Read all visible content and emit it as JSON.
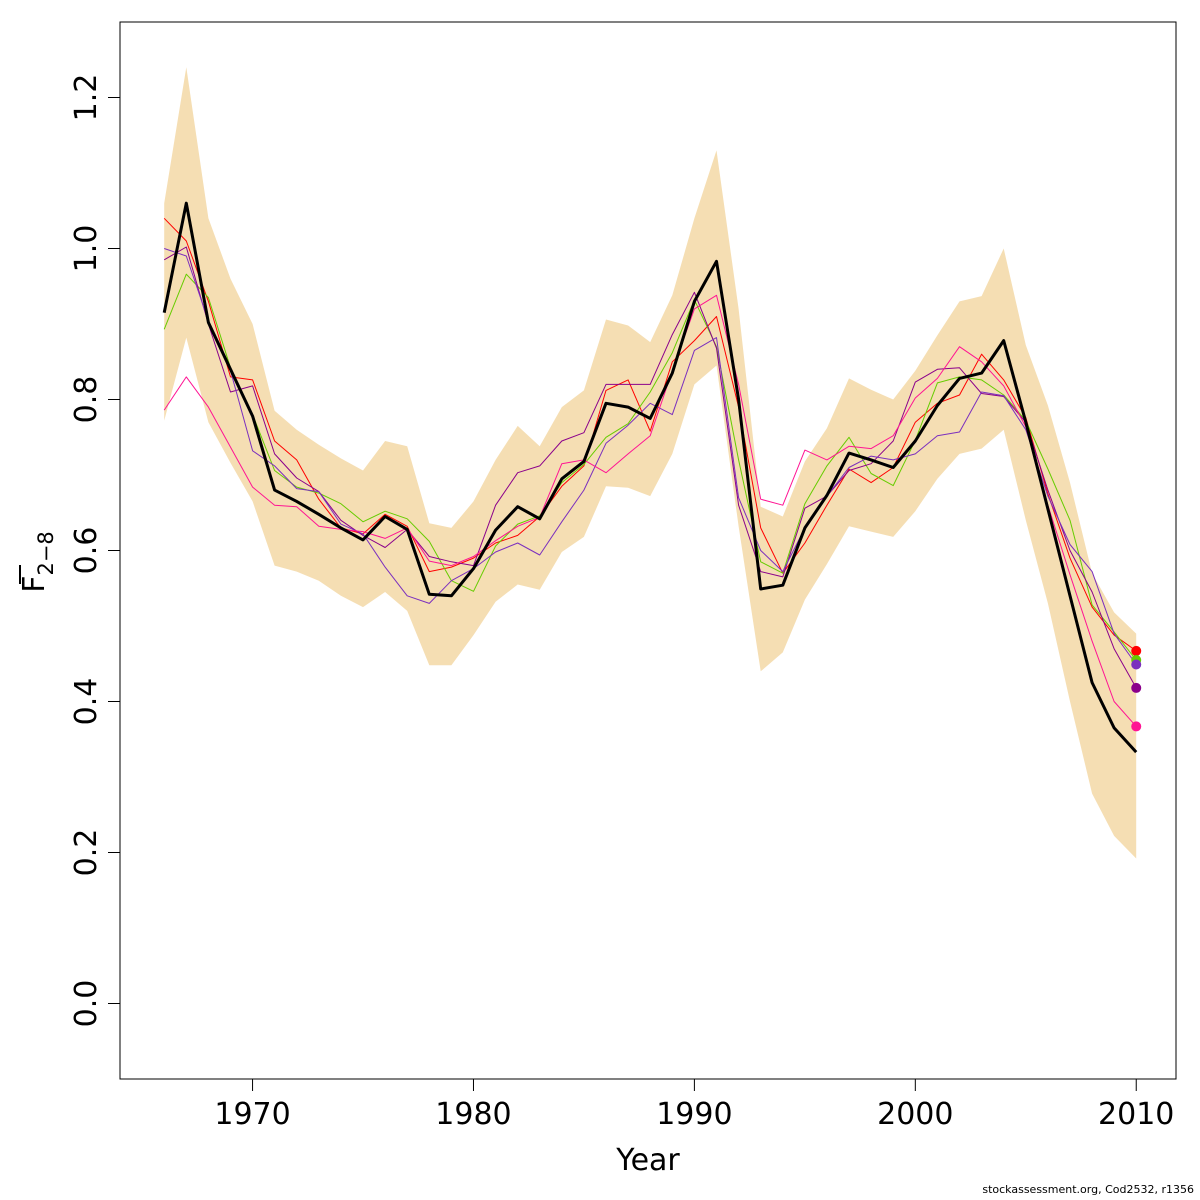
{
  "chart_data": {
    "type": "line",
    "xlabel": "Year",
    "ylabel": "F",
    "ylabel_bar": true,
    "ylabel_sub": "2−8",
    "xlim": [
      1964,
      2011.8
    ],
    "ylim": [
      -0.1,
      1.3
    ],
    "x_ticks": [
      1970,
      1980,
      1990,
      2000,
      2010
    ],
    "x_tick_labels": [
      "1970",
      "1980",
      "1990",
      "2000",
      "2010"
    ],
    "y_ticks": [
      0.0,
      0.2,
      0.4,
      0.6,
      0.8,
      1.0,
      1.2
    ],
    "y_tick_labels": [
      "0.0",
      "0.2",
      "0.4",
      "0.6",
      "0.8",
      "1.0",
      "1.2"
    ],
    "grid": false,
    "legend": "none",
    "x": [
      1966,
      1967,
      1968,
      1969,
      1970,
      1971,
      1972,
      1973,
      1974,
      1975,
      1976,
      1977,
      1978,
      1979,
      1980,
      1981,
      1982,
      1983,
      1984,
      1985,
      1986,
      1987,
      1988,
      1989,
      1990,
      1991,
      1992,
      1993,
      1994,
      1995,
      1996,
      1997,
      1998,
      1999,
      2000,
      2001,
      2002,
      2003,
      2004,
      2005,
      2006,
      2007,
      2008,
      2009,
      2010
    ],
    "band": {
      "color": "#F5DEB3",
      "upper": [
        1.06,
        1.24,
        1.04,
        0.96,
        0.9,
        0.785,
        0.76,
        0.74,
        0.722,
        0.706,
        0.745,
        0.738,
        0.636,
        0.63,
        0.665,
        0.72,
        0.765,
        0.738,
        0.79,
        0.812,
        0.906,
        0.898,
        0.876,
        0.938,
        1.04,
        1.13,
        0.92,
        0.658,
        0.645,
        0.718,
        0.762,
        0.828,
        0.813,
        0.8,
        0.838,
        0.885,
        0.93,
        0.937,
        1.0,
        0.872,
        0.792,
        0.69,
        0.57,
        0.518,
        0.49
      ],
      "lower": [
        0.772,
        0.882,
        0.77,
        0.716,
        0.665,
        0.58,
        0.572,
        0.56,
        0.54,
        0.525,
        0.545,
        0.52,
        0.448,
        0.448,
        0.488,
        0.532,
        0.555,
        0.548,
        0.598,
        0.618,
        0.685,
        0.683,
        0.672,
        0.728,
        0.82,
        0.845,
        0.632,
        0.44,
        0.465,
        0.535,
        0.582,
        0.632,
        0.625,
        0.618,
        0.652,
        0.695,
        0.728,
        0.735,
        0.76,
        0.64,
        0.53,
        0.4,
        0.278,
        0.222,
        0.192
      ]
    },
    "series": [
      {
        "color": "#000000",
        "width": 3,
        "values": [
          0.915,
          1.06,
          0.902,
          0.84,
          0.778,
          0.68,
          0.665,
          0.648,
          0.63,
          0.614,
          0.645,
          0.628,
          0.542,
          0.54,
          0.576,
          0.627,
          0.658,
          0.642,
          0.695,
          0.718,
          0.795,
          0.79,
          0.775,
          0.835,
          0.93,
          0.983,
          0.8,
          0.549,
          0.554,
          0.63,
          0.673,
          0.729,
          0.72,
          0.71,
          0.745,
          0.792,
          0.828,
          0.835,
          0.878,
          0.77,
          0.655,
          0.54,
          0.425,
          0.365,
          0.333
        ]
      },
      {
        "color": "#FF0000",
        "width": 1,
        "values": [
          1.04,
          1.01,
          0.93,
          0.83,
          0.826,
          0.745,
          0.72,
          0.668,
          0.63,
          0.622,
          0.648,
          0.632,
          0.572,
          0.578,
          0.59,
          0.61,
          0.62,
          0.645,
          0.685,
          0.712,
          0.812,
          0.826,
          0.758,
          0.85,
          0.878,
          0.91,
          0.79,
          0.63,
          0.57,
          0.61,
          0.66,
          0.708,
          0.69,
          0.71,
          0.77,
          0.795,
          0.806,
          0.86,
          0.826,
          0.776,
          0.675,
          0.59,
          0.525,
          0.488,
          0.467
        ]
      },
      {
        "color": "#66CC00",
        "width": 1,
        "values": [
          0.893,
          0.966,
          0.935,
          0.842,
          0.78,
          0.706,
          0.684,
          0.676,
          0.662,
          0.638,
          0.652,
          0.642,
          0.612,
          0.56,
          0.546,
          0.606,
          0.635,
          0.646,
          0.69,
          0.714,
          0.75,
          0.768,
          0.81,
          0.862,
          0.932,
          0.87,
          0.72,
          0.585,
          0.57,
          0.662,
          0.712,
          0.75,
          0.702,
          0.686,
          0.746,
          0.822,
          0.83,
          0.826,
          0.806,
          0.772,
          0.708,
          0.64,
          0.528,
          0.492,
          0.455
        ]
      },
      {
        "color": "#8B008B",
        "width": 1,
        "values": [
          0.985,
          1.002,
          0.9,
          0.81,
          0.818,
          0.728,
          0.696,
          0.678,
          0.64,
          0.62,
          0.604,
          0.628,
          0.592,
          0.585,
          0.58,
          0.66,
          0.703,
          0.712,
          0.745,
          0.756,
          0.82,
          0.82,
          0.82,
          0.886,
          0.942,
          0.868,
          0.66,
          0.572,
          0.565,
          0.656,
          0.672,
          0.706,
          0.715,
          0.745,
          0.823,
          0.84,
          0.842,
          0.808,
          0.804,
          0.77,
          0.68,
          0.6,
          0.545,
          0.47,
          0.418
        ]
      },
      {
        "color": "#7B2FBE",
        "width": 1,
        "values": [
          1.0,
          0.99,
          0.904,
          0.838,
          0.732,
          0.712,
          0.682,
          0.678,
          0.635,
          0.622,
          0.578,
          0.54,
          0.53,
          0.56,
          0.576,
          0.598,
          0.61,
          0.594,
          0.638,
          0.68,
          0.742,
          0.766,
          0.795,
          0.78,
          0.865,
          0.882,
          0.67,
          0.6,
          0.572,
          0.63,
          0.672,
          0.71,
          0.725,
          0.72,
          0.728,
          0.752,
          0.757,
          0.81,
          0.805,
          0.76,
          0.672,
          0.608,
          0.572,
          0.49,
          0.449
        ]
      },
      {
        "color": "#FF1493",
        "width": 1,
        "values": [
          0.786,
          0.83,
          0.79,
          0.737,
          0.684,
          0.66,
          0.658,
          0.632,
          0.628,
          0.625,
          0.616,
          0.63,
          0.586,
          0.58,
          0.592,
          0.613,
          0.632,
          0.644,
          0.715,
          0.72,
          0.703,
          0.728,
          0.752,
          0.838,
          0.92,
          0.938,
          0.82,
          0.668,
          0.66,
          0.733,
          0.72,
          0.738,
          0.735,
          0.752,
          0.802,
          0.828,
          0.87,
          0.85,
          0.818,
          0.764,
          0.66,
          0.568,
          0.48,
          0.4,
          0.367
        ]
      }
    ],
    "endpoints": [
      {
        "year": 2010,
        "value": 0.467,
        "color": "#FF0000"
      },
      {
        "year": 2010,
        "value": 0.455,
        "color": "#66CC00"
      },
      {
        "year": 2010,
        "value": 0.449,
        "color": "#7B2FBE"
      },
      {
        "year": 2010,
        "value": 0.418,
        "color": "#8B008B"
      },
      {
        "year": 2010,
        "value": 0.367,
        "color": "#FF1493"
      }
    ]
  },
  "footer": {
    "text": "stockassessment.org, Cod2532, r1356"
  }
}
